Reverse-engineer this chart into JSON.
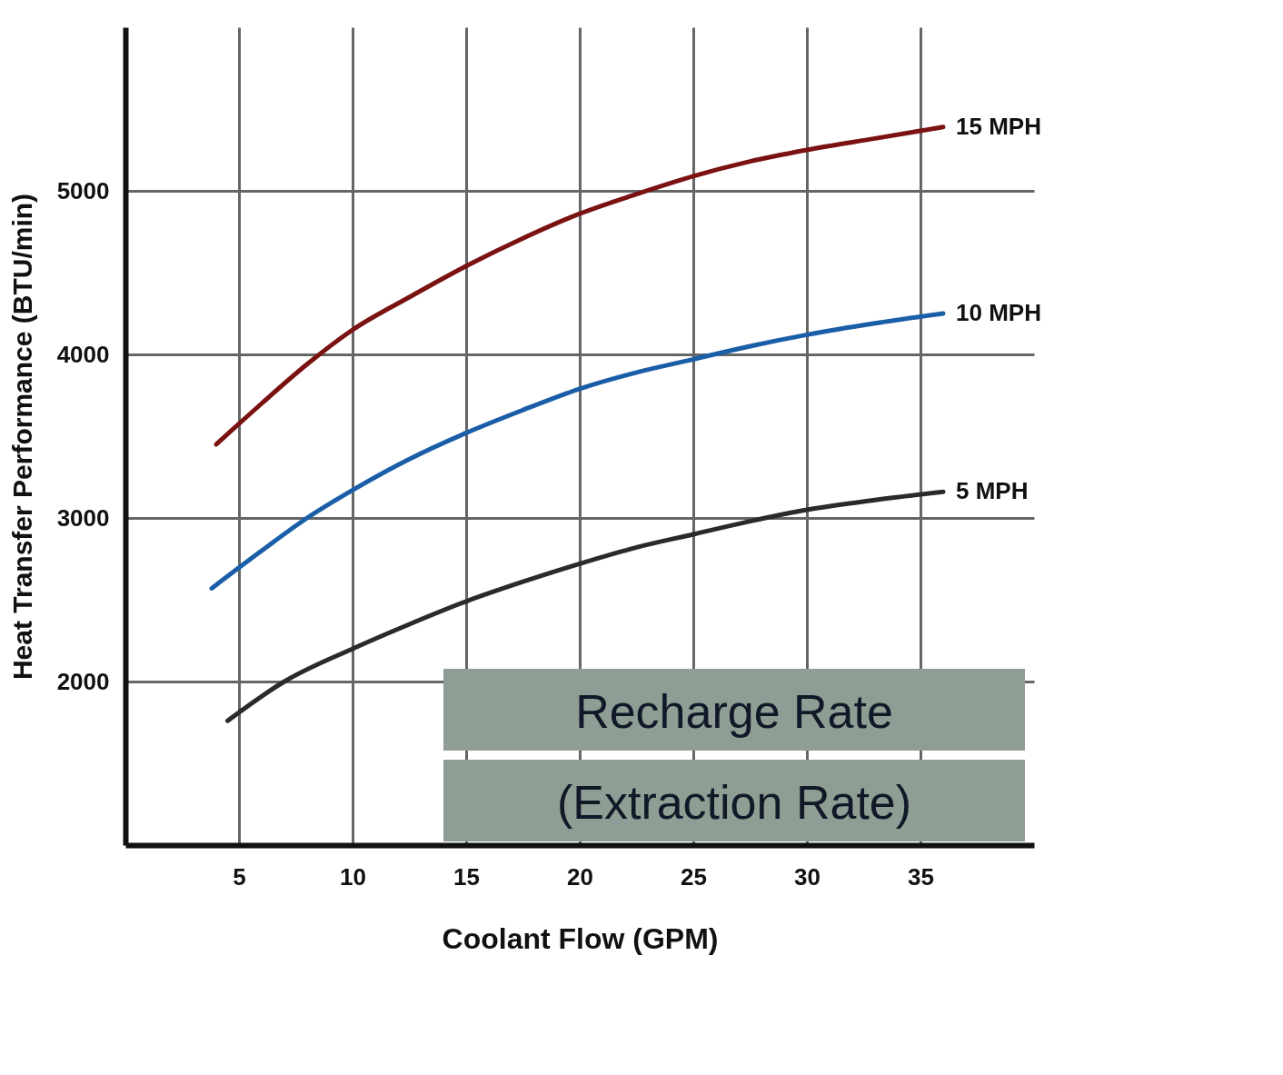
{
  "chart_data": {
    "type": "line",
    "xlabel": "Coolant Flow (GPM)",
    "ylabel": "Heat Transfer Performance (BTU/min)",
    "xlim": [
      0,
      40
    ],
    "ylim": [
      1000,
      6000
    ],
    "xticks": [
      5,
      10,
      15,
      20,
      25,
      30,
      35
    ],
    "yticks": [
      2000,
      3000,
      4000,
      5000
    ],
    "grid": true,
    "legend": false,
    "annotations": [
      "Recharge Rate",
      "(Extraction Rate)"
    ],
    "series": [
      {
        "name": "15 MPH",
        "color": "#7a1212",
        "x": [
          4,
          6,
          8,
          10,
          12.5,
          15,
          17.5,
          20,
          22.5,
          25,
          27.5,
          30,
          33,
          36
        ],
        "values": [
          3450,
          3700,
          3940,
          4150,
          4350,
          4540,
          4710,
          4860,
          4980,
          5090,
          5180,
          5250,
          5320,
          5390
        ]
      },
      {
        "name": "10 MPH",
        "color": "#1a5ea8",
        "x": [
          3.8,
          6,
          8,
          10,
          12.5,
          15,
          17.5,
          20,
          22.5,
          25,
          27.5,
          30,
          33,
          36
        ],
        "values": [
          2570,
          2800,
          3000,
          3170,
          3360,
          3520,
          3660,
          3790,
          3890,
          3970,
          4050,
          4120,
          4190,
          4250
        ]
      },
      {
        "name": "5 MPH",
        "color": "#2a2a2a",
        "x": [
          4.5,
          7,
          10,
          12.5,
          15,
          17.5,
          20,
          22.5,
          25,
          27.5,
          30,
          33,
          36
        ],
        "values": [
          1760,
          2000,
          2200,
          2350,
          2490,
          2610,
          2720,
          2820,
          2900,
          2980,
          3050,
          3110,
          3160
        ]
      }
    ]
  }
}
